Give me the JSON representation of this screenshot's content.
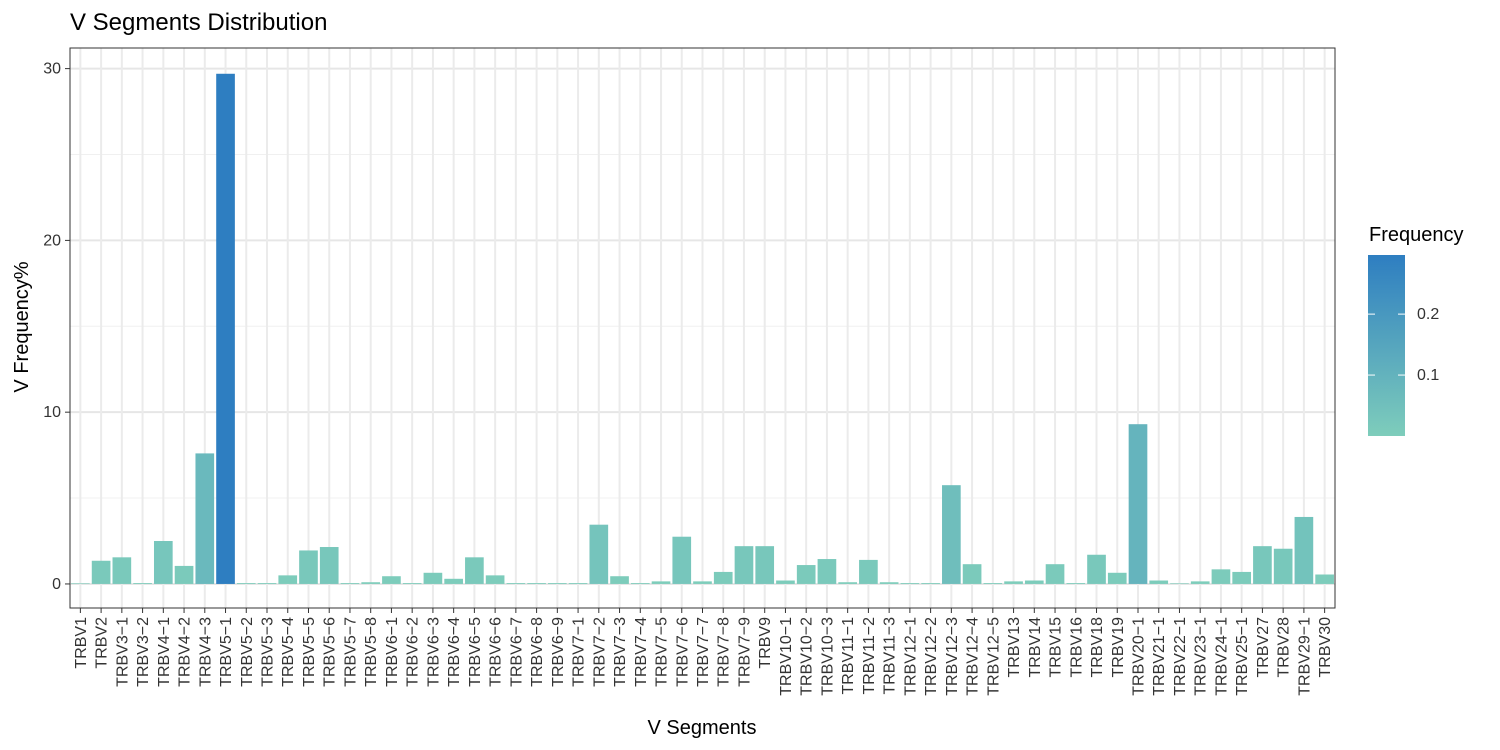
{
  "chart_data": {
    "type": "bar",
    "title": "V Segments Distribution",
    "xlabel": "V Segments",
    "ylabel": "V Frequency%",
    "ylim": [
      -1.4,
      31.2
    ],
    "yticks": [
      0,
      10,
      20,
      30
    ],
    "grid": true,
    "legend": {
      "title": "Frequency",
      "placement": "right",
      "ticks": [
        {
          "value": 0.2,
          "label": "0.2"
        },
        {
          "value": 0.1,
          "label": "0.1"
        }
      ],
      "low_color": "#7ECDBB",
      "high_color": "#2E7EC1",
      "range": [
        0.0,
        0.297
      ]
    },
    "categories": [
      "TRBV1",
      "TRBV2",
      "TRBV3−1",
      "TRBV3−2",
      "TRBV4−1",
      "TRBV4−2",
      "TRBV4−3",
      "TRBV5−1",
      "TRBV5−2",
      "TRBV5−3",
      "TRBV5−4",
      "TRBV5−5",
      "TRBV5−6",
      "TRBV5−7",
      "TRBV5−8",
      "TRBV6−1",
      "TRBV6−2",
      "TRBV6−3",
      "TRBV6−4",
      "TRBV6−5",
      "TRBV6−6",
      "TRBV6−7",
      "TRBV6−8",
      "TRBV6−9",
      "TRBV7−1",
      "TRBV7−2",
      "TRBV7−3",
      "TRBV7−4",
      "TRBV7−5",
      "TRBV7−6",
      "TRBV7−7",
      "TRBV7−8",
      "TRBV7−9",
      "TRBV9",
      "TRBV10−1",
      "TRBV10−2",
      "TRBV10−3",
      "TRBV11−1",
      "TRBV11−2",
      "TRBV11−3",
      "TRBV12−1",
      "TRBV12−2",
      "TRBV12−3",
      "TRBV12−4",
      "TRBV12−5",
      "TRBV13",
      "TRBV14",
      "TRBV15",
      "TRBV16",
      "TRBV18",
      "TRBV19",
      "TRBV20−1",
      "TRBV21−1",
      "TRBV22−1",
      "TRBV23−1",
      "TRBV24−1",
      "TRBV25−1",
      "TRBV27",
      "TRBV28",
      "TRBV29−1",
      "TRBV30"
    ],
    "values": [
      0.02,
      1.35,
      1.55,
      0.05,
      2.5,
      1.05,
      7.6,
      29.7,
      0.05,
      0.05,
      0.5,
      1.95,
      2.15,
      0.05,
      0.1,
      0.45,
      0.05,
      0.65,
      0.3,
      1.55,
      0.5,
      0.05,
      0.05,
      0.05,
      0.05,
      3.45,
      0.45,
      0.05,
      0.15,
      2.75,
      0.15,
      0.7,
      2.2,
      2.2,
      0.2,
      1.1,
      1.45,
      0.1,
      1.4,
      0.1,
      0.05,
      0.05,
      5.75,
      1.15,
      0.05,
      0.15,
      0.2,
      1.15,
      0.05,
      1.7,
      0.65,
      9.3,
      0.2,
      0.02,
      0.15,
      0.85,
      0.7,
      2.2,
      2.05,
      3.9,
      0.55
    ]
  }
}
